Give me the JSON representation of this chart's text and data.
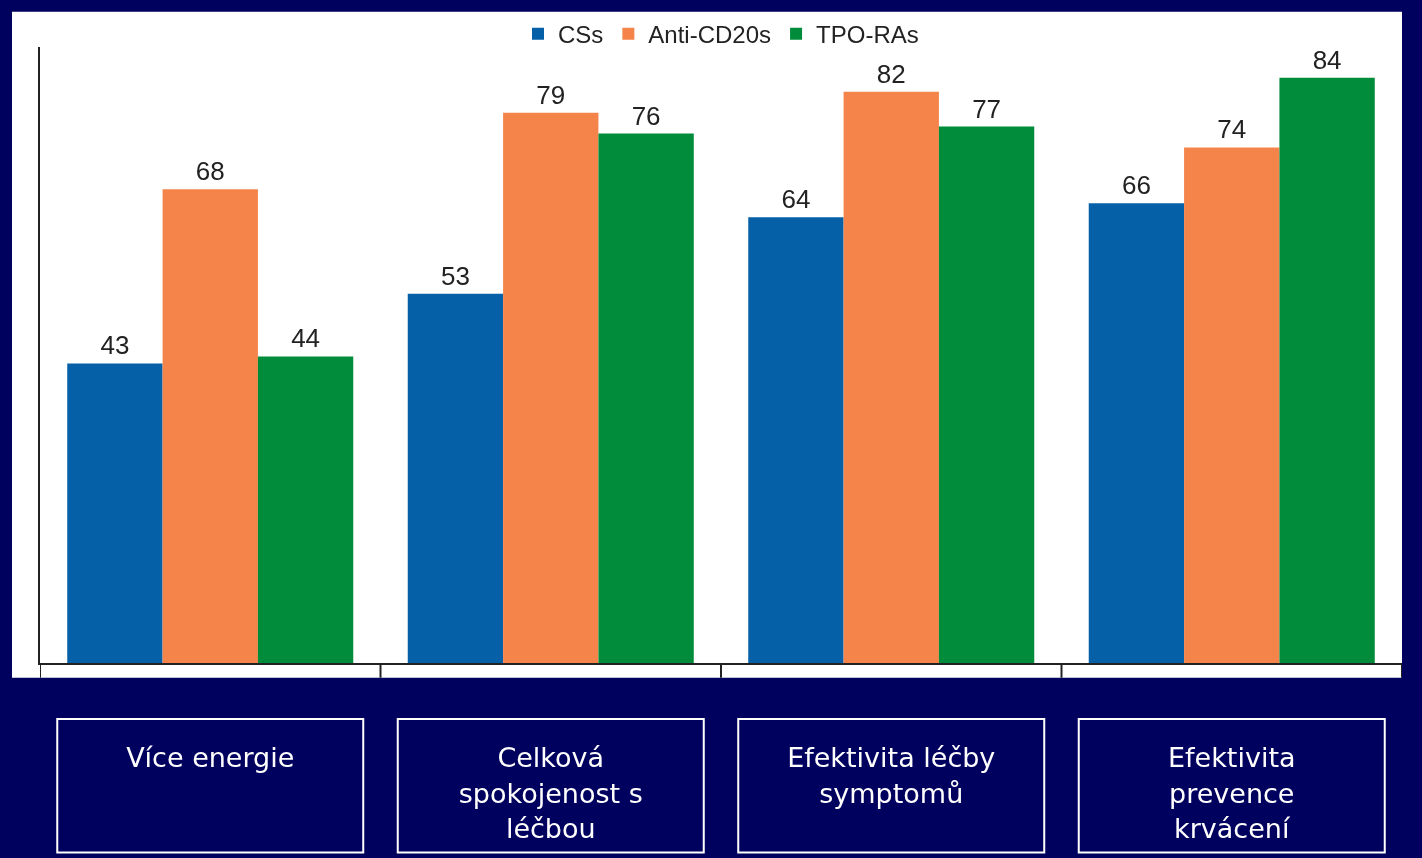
{
  "chart_data": {
    "type": "bar",
    "categories": [
      "Více energie",
      "Celková spokojenost s léčbou",
      "Efektivita léčby symptomů",
      "Efektivita prevence krvácení"
    ],
    "series": [
      {
        "name": "CSs",
        "color": "#0560a8",
        "values": [
          43,
          53,
          64,
          66
        ]
      },
      {
        "name": "Anti-CD20s",
        "color": "#f5844a",
        "values": [
          68,
          79,
          82,
          74
        ]
      },
      {
        "name": "TPO-RAs",
        "color": "#008c3a",
        "values": [
          44,
          76,
          77,
          84
        ]
      }
    ],
    "tick_labels": "x",
    "data_labels": true,
    "grid": false,
    "legend": "top"
  }
}
